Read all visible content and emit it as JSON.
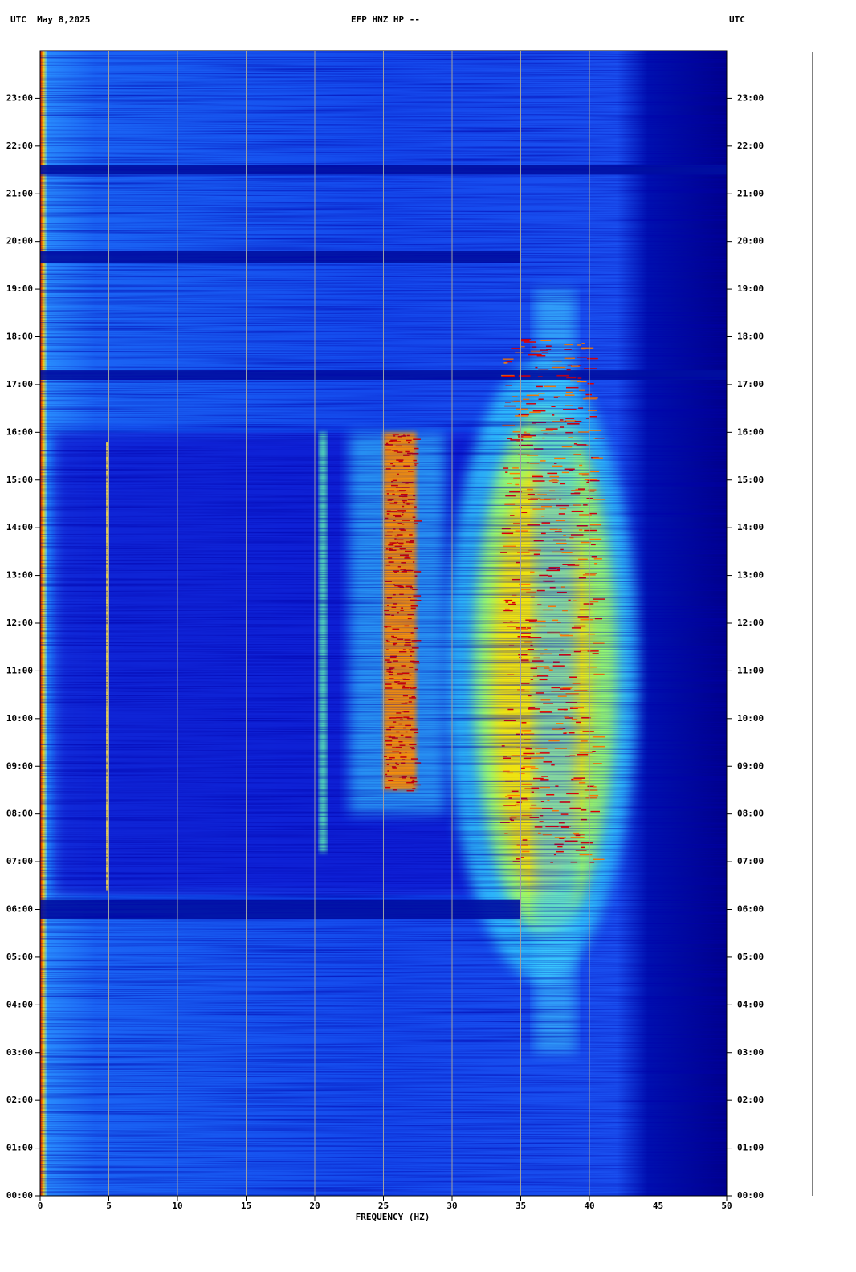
{
  "header": {
    "left": "UTC  May 8,2025",
    "center": "EFP HNZ HP --",
    "right": "UTC"
  },
  "chart_data": {
    "type": "spectrogram",
    "xlabel": "FREQUENCY (HZ)",
    "xlim": [
      0,
      50
    ],
    "xticks": [
      0,
      5,
      10,
      15,
      20,
      25,
      30,
      35,
      40,
      45,
      50
    ],
    "ylim": [
      0,
      24
    ],
    "yticks": [
      {
        "value": 0,
        "label": "00:00"
      },
      {
        "value": 1,
        "label": "01:00"
      },
      {
        "value": 2,
        "label": "02:00"
      },
      {
        "value": 3,
        "label": "03:00"
      },
      {
        "value": 4,
        "label": "04:00"
      },
      {
        "value": 5,
        "label": "05:00"
      },
      {
        "value": 6,
        "label": "06:00"
      },
      {
        "value": 7,
        "label": "07:00"
      },
      {
        "value": 8,
        "label": "08:00"
      },
      {
        "value": 9,
        "label": "09:00"
      },
      {
        "value": 10,
        "label": "10:00"
      },
      {
        "value": 11,
        "label": "11:00"
      },
      {
        "value": 12,
        "label": "12:00"
      },
      {
        "value": 13,
        "label": "13:00"
      },
      {
        "value": 14,
        "label": "14:00"
      },
      {
        "value": 15,
        "label": "15:00"
      },
      {
        "value": 16,
        "label": "16:00"
      },
      {
        "value": 17,
        "label": "17:00"
      },
      {
        "value": 18,
        "label": "18:00"
      },
      {
        "value": 19,
        "label": "19:00"
      },
      {
        "value": 20,
        "label": "20:00"
      },
      {
        "value": 21,
        "label": "21:00"
      },
      {
        "value": 22,
        "label": "22:00"
      },
      {
        "value": 23,
        "label": "23:00"
      }
    ],
    "grid": true
  }
}
